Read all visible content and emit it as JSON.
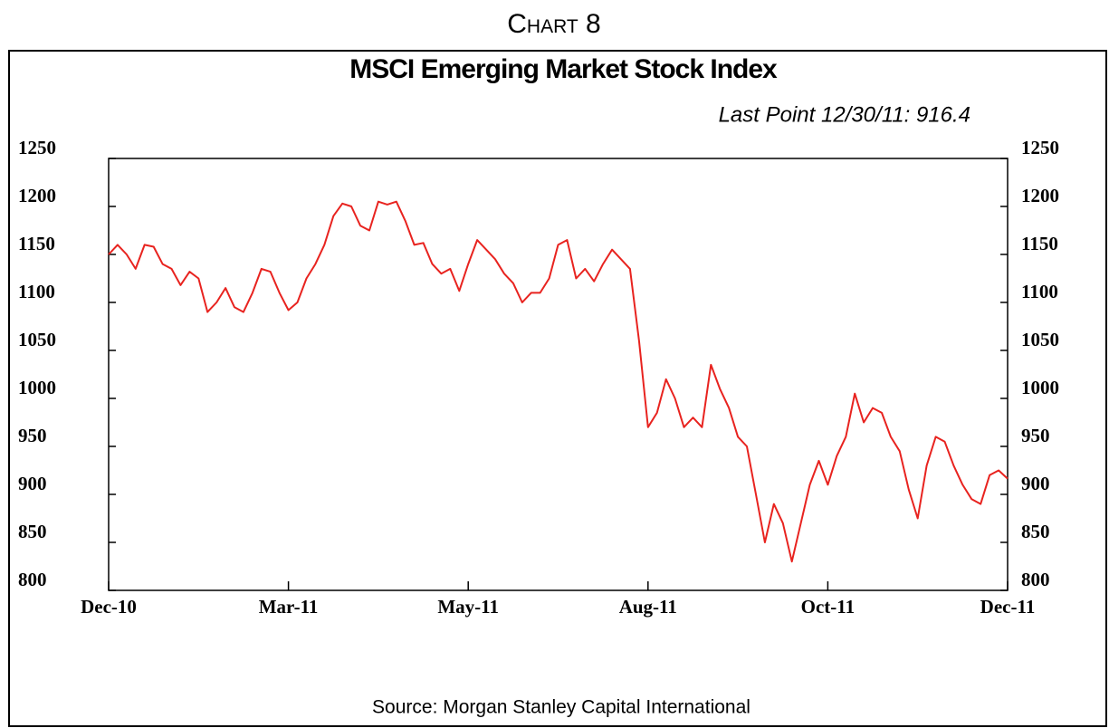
{
  "chart_data": {
    "type": "line",
    "heading": "Chart 8",
    "title": "MSCI Emerging Market Stock Index",
    "annotation": "Last Point 12/30/11: 916.4",
    "source": "Source: Morgan Stanley Capital International",
    "categories": [
      "Dec-10",
      null,
      null,
      null,
      null,
      null,
      null,
      null,
      null,
      null,
      null,
      null,
      null,
      null,
      null,
      null,
      null,
      null,
      null,
      null,
      "Mar-11",
      null,
      null,
      null,
      null,
      null,
      null,
      null,
      null,
      null,
      null,
      null,
      null,
      null,
      null,
      null,
      null,
      null,
      null,
      null,
      "May-11",
      null,
      null,
      null,
      null,
      null,
      null,
      null,
      null,
      null,
      null,
      null,
      null,
      null,
      null,
      null,
      null,
      null,
      null,
      null,
      "Aug-11",
      null,
      null,
      null,
      null,
      null,
      null,
      null,
      null,
      null,
      null,
      null,
      null,
      null,
      null,
      null,
      null,
      null,
      null,
      null,
      "Oct-11",
      null,
      null,
      null,
      null,
      null,
      null,
      null,
      null,
      null,
      null,
      null,
      null,
      null,
      null,
      null,
      null,
      null,
      null,
      null,
      "Dec-11"
    ],
    "series": [
      {
        "color": "#e8231f",
        "values": [
          1150,
          1160,
          1150,
          1135,
          1160,
          1158,
          1140,
          1135,
          1118,
          1132,
          1125,
          1090,
          1100,
          1115,
          1095,
          1090,
          1110,
          1135,
          1132,
          1110,
          1092,
          1100,
          1125,
          1140,
          1160,
          1190,
          1203,
          1200,
          1180,
          1175,
          1205,
          1202,
          1205,
          1185,
          1160,
          1162,
          1140,
          1130,
          1135,
          1112,
          1140,
          1165,
          1155,
          1145,
          1130,
          1120,
          1100,
          1110,
          1110,
          1125,
          1160,
          1165,
          1125,
          1135,
          1122,
          1140,
          1155,
          1145,
          1135,
          1060,
          970,
          985,
          1020,
          1000,
          970,
          980,
          970,
          1035,
          1010,
          990,
          960,
          950,
          900,
          850,
          890,
          870,
          830,
          870,
          910,
          935,
          910,
          940,
          960,
          1005,
          975,
          990,
          985,
          960,
          945,
          905,
          875,
          930,
          960,
          955,
          930,
          910,
          895,
          890,
          920,
          925,
          916.4
        ]
      }
    ],
    "ylim": [
      800,
      1250
    ],
    "yticks": [
      800,
      850,
      900,
      950,
      1000,
      1050,
      1100,
      1150,
      1200,
      1250
    ]
  }
}
